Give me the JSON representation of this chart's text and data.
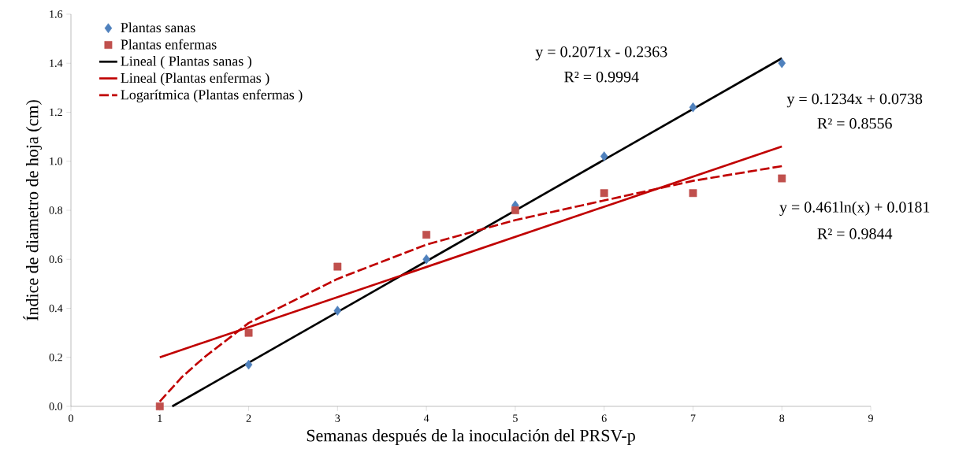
{
  "chart_data": {
    "type": "scatter",
    "xlabel": "Semanas después de la inoculación del PRSV-p",
    "ylabel": "Índice de diametro de hoja (cm)",
    "xlim": [
      0,
      9
    ],
    "xticks": [
      0,
      1,
      2,
      3,
      4,
      5,
      6,
      7,
      8,
      9
    ],
    "ylim": [
      0,
      1.6
    ],
    "yticks": [
      {
        "value": 0,
        "label": "0.0"
      },
      {
        "value": 0.2,
        "label": "0.2"
      },
      {
        "value": 0.4,
        "label": "0.4"
      },
      {
        "value": 0.6,
        "label": "0.6"
      },
      {
        "value": 0.8,
        "label": "0.8"
      },
      {
        "value": 1.0,
        "label": "1.0"
      },
      {
        "value": 1.2,
        "label": "1.2"
      },
      {
        "value": 1.4,
        "label": "1.4"
      },
      {
        "value": 1.6,
        "label": "1.6"
      }
    ],
    "grid": false,
    "legend": "top left",
    "series": [
      {
        "name": "Plantas sanas",
        "marker": "diamond",
        "color": "#4f81bd",
        "x": [
          2,
          3,
          4,
          5,
          6,
          7,
          8
        ],
        "values": [
          0.17,
          0.39,
          0.6,
          0.82,
          1.02,
          1.22,
          1.4
        ]
      },
      {
        "name": "Plantas enfermas",
        "marker": "square",
        "color": "#c0504d",
        "x": [
          1,
          2,
          3,
          4,
          5,
          6,
          7,
          8
        ],
        "values": [
          0.0,
          0.3,
          0.57,
          0.7,
          0.8,
          0.87,
          0.87,
          0.93
        ]
      },
      {
        "name": "Lineal ( Plantas sanas )",
        "type": "line",
        "line_style": "solid",
        "color": "#000000",
        "x": [
          1.14,
          8
        ],
        "values": [
          0.0,
          1.42
        ]
      },
      {
        "name": "Lineal (Plantas enfermas )",
        "type": "line",
        "line_style": "solid",
        "color": "#c00000",
        "x": [
          1,
          8
        ],
        "values": [
          0.2,
          1.06
        ]
      },
      {
        "name": "Logarítmica (Plantas enfermas )",
        "type": "line",
        "line_style": "dashed",
        "color": "#c00000",
        "x": [
          1,
          1.25,
          1.5,
          2,
          3,
          4,
          5,
          6,
          7,
          8
        ],
        "values": [
          0.02,
          0.12,
          0.2,
          0.34,
          0.52,
          0.66,
          0.76,
          0.84,
          0.92,
          0.98
        ]
      }
    ],
    "annotations": [
      "y = 0.2071x - 0.2363",
      "R² = 0.9994",
      "y = 0.1234x + 0.0738",
      "R² = 0.8556",
      "y = 0.461ln(x) + 0.0181",
      "R² = 0.9844"
    ]
  }
}
